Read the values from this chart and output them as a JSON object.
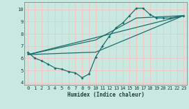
{
  "title": "",
  "xlabel": "Humidex (Indice chaleur)",
  "ylabel": "",
  "background_color": "#c8e8e0",
  "plot_bg_color": "#c8e8e0",
  "grid_color": "#f0c8c8",
  "line_color": "#1a6e6e",
  "xlim": [
    -0.5,
    23.5
  ],
  "ylim": [
    3.8,
    10.6
  ],
  "yticks": [
    4,
    5,
    6,
    7,
    8,
    9,
    10
  ],
  "xticks": [
    0,
    1,
    2,
    3,
    4,
    5,
    6,
    7,
    8,
    9,
    10,
    11,
    12,
    13,
    14,
    15,
    16,
    17,
    18,
    19,
    20,
    21,
    22,
    23
  ],
  "series_main": {
    "x": [
      0,
      1,
      2,
      3,
      4,
      5,
      6,
      7,
      8,
      9,
      10,
      11,
      12,
      13,
      14,
      15,
      16,
      17,
      18,
      19,
      20,
      21,
      22,
      23
    ],
    "y": [
      6.5,
      6.0,
      5.8,
      5.5,
      5.2,
      5.1,
      4.9,
      4.8,
      4.4,
      4.7,
      6.1,
      7.0,
      7.8,
      8.5,
      8.9,
      9.5,
      10.1,
      10.1,
      9.6,
      9.3,
      9.3,
      9.3,
      9.4,
      9.5
    ]
  },
  "series_lines": [
    {
      "x": [
        0,
        23
      ],
      "y": [
        6.3,
        9.5
      ]
    },
    {
      "x": [
        0,
        10,
        23
      ],
      "y": [
        6.3,
        6.5,
        9.5
      ]
    },
    {
      "x": [
        0,
        10,
        16,
        23
      ],
      "y": [
        6.3,
        7.5,
        9.3,
        9.5
      ]
    }
  ]
}
